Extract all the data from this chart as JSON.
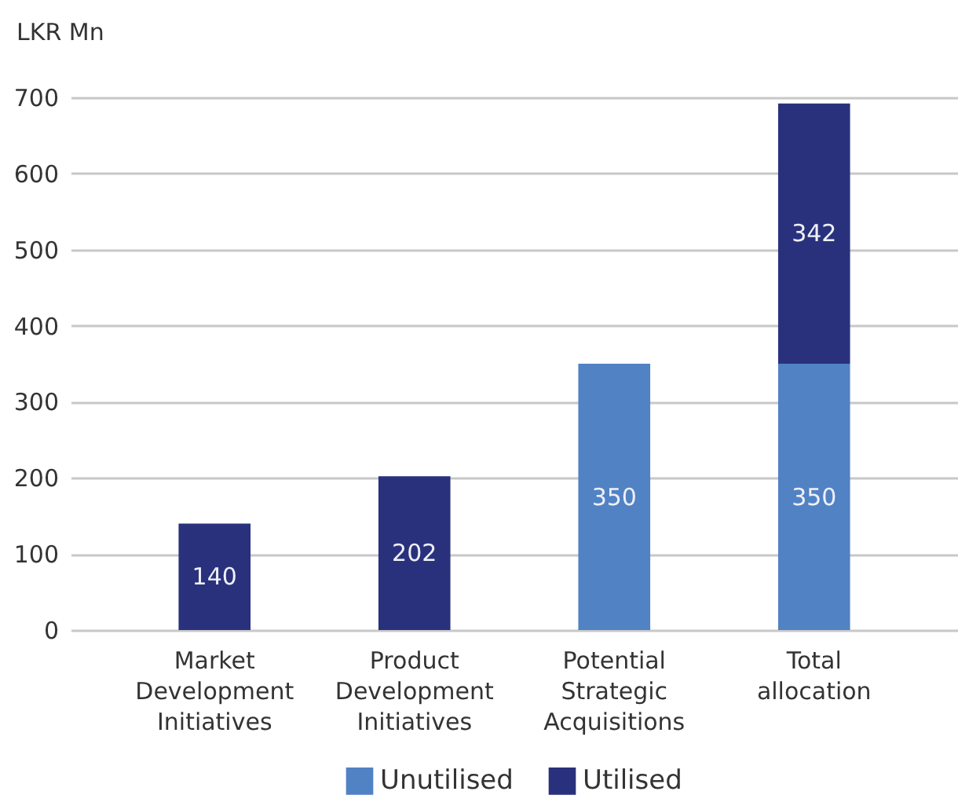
{
  "chart_data": {
    "type": "bar",
    "ylabel": "LKR Mn",
    "categories": [
      "Market Development Initiatives",
      "Product Development Initiatives",
      "Potential Strategic Acquisitions",
      "Total allocation"
    ],
    "series": [
      {
        "name": "Unutilised",
        "color": "#5182c4",
        "values": [
          null,
          null,
          350,
          350
        ]
      },
      {
        "name": "Utilised",
        "color": "#2a317c",
        "values": [
          140,
          202,
          null,
          342
        ]
      }
    ],
    "stacked": true,
    "ylim": [
      0,
      700
    ],
    "yticks": [
      0,
      100,
      200,
      300,
      400,
      500,
      600,
      700
    ],
    "grid": "y",
    "legend": "bottom",
    "data_labels": true
  }
}
